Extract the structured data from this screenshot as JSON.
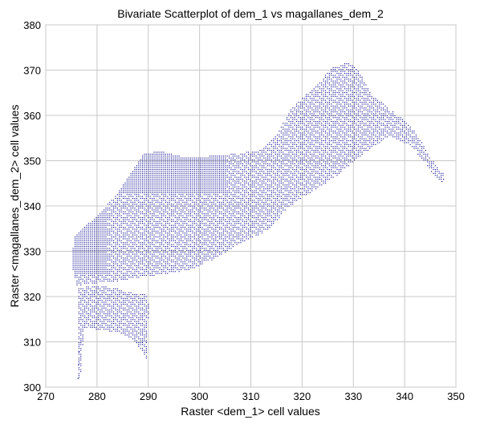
{
  "chart_data": {
    "type": "scatter",
    "title": "Bivariate Scatterplot of dem_1 vs magallanes_dem_2",
    "xlabel": "Raster <dem_1> cell values",
    "ylabel": "Raster <magallanes_dem_2> cell values",
    "xlim": [
      270,
      350
    ],
    "ylim": [
      300,
      380
    ],
    "xticks": [
      270,
      280,
      290,
      300,
      310,
      320,
      330,
      340,
      350
    ],
    "yticks": [
      300,
      310,
      320,
      330,
      340,
      350,
      360,
      370,
      380
    ],
    "grid": true,
    "point_color": "#00008b",
    "point_cloud_outline": [
      [
        275.4,
        333
      ],
      [
        277,
        335
      ],
      [
        280,
        338
      ],
      [
        284,
        343
      ],
      [
        289,
        351.5
      ],
      [
        292,
        352.3
      ],
      [
        297,
        350.8
      ],
      [
        303,
        351.2
      ],
      [
        308,
        351.8
      ],
      [
        312,
        352.5
      ],
      [
        315,
        356
      ],
      [
        318,
        362
      ],
      [
        322,
        366
      ],
      [
        326,
        370.8
      ],
      [
        329,
        371.8
      ],
      [
        331,
        370
      ],
      [
        333,
        365.5
      ],
      [
        337,
        361.5
      ],
      [
        340,
        359
      ],
      [
        343,
        355
      ],
      [
        345,
        350.5
      ],
      [
        347,
        348
      ],
      [
        347.6,
        347
      ],
      [
        347.2,
        345.5
      ],
      [
        346.2,
        346
      ],
      [
        344,
        349.5
      ],
      [
        341,
        353.5
      ],
      [
        337,
        355.5
      ],
      [
        333,
        352.5
      ],
      [
        330,
        350
      ],
      [
        327,
        347
      ],
      [
        323,
        344
      ],
      [
        320,
        342
      ],
      [
        317,
        339.5
      ],
      [
        314,
        335.5
      ],
      [
        312,
        334
      ],
      [
        308,
        332
      ],
      [
        303,
        328.5
      ],
      [
        298,
        326
      ],
      [
        293,
        325
      ],
      [
        289,
        324.5
      ],
      [
        284,
        323.5
      ],
      [
        279,
        323
      ],
      [
        276,
        322.5
      ],
      [
        275.2,
        326
      ],
      [
        275.2,
        330
      ]
    ],
    "lower_lobe_outline": [
      [
        276.3,
        322
      ],
      [
        279,
        322.5
      ],
      [
        283,
        322.2
      ],
      [
        286.5,
        321
      ],
      [
        289.5,
        320.5
      ],
      [
        290,
        318
      ],
      [
        289.8,
        312
      ],
      [
        289.8,
        305.5
      ],
      [
        289,
        307.5
      ],
      [
        287,
        310.5
      ],
      [
        284,
        312.2
      ],
      [
        280,
        312.8
      ],
      [
        277.3,
        313
      ],
      [
        277,
        306
      ],
      [
        276.6,
        301.2
      ],
      [
        276.2,
        303
      ],
      [
        276.2,
        312
      ]
    ]
  }
}
